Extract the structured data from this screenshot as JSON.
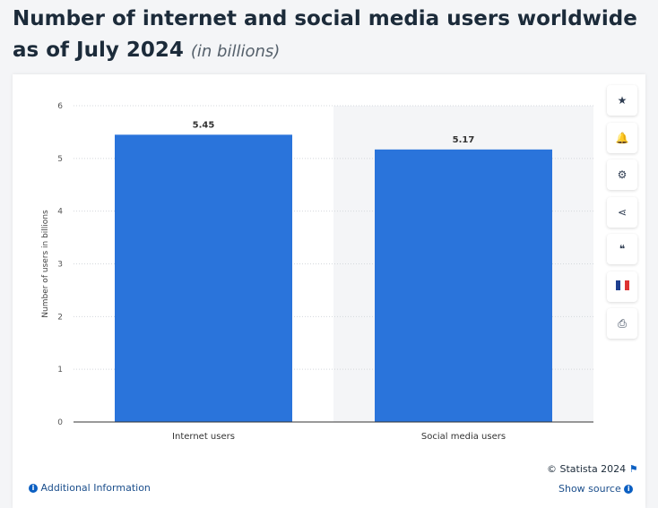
{
  "title": "Number of internet and social media users worldwide as of July 2024",
  "title_unit": "(in billions)",
  "tools": [
    {
      "name": "star-icon",
      "glyph": "★"
    },
    {
      "name": "bell-icon",
      "glyph": "🔔"
    },
    {
      "name": "gear-icon",
      "glyph": "⚙"
    },
    {
      "name": "share-icon",
      "glyph": "⋖"
    },
    {
      "name": "quote-icon",
      "glyph": "❝"
    },
    {
      "name": "french-flag-icon",
      "glyph": ""
    },
    {
      "name": "print-icon",
      "glyph": "⎙"
    }
  ],
  "footer": {
    "copyright": "© Statista 2024",
    "additional": "Additional Information",
    "source": "Show source"
  },
  "colors": {
    "bar": "#2a74db",
    "highlight": "#f4f5f7"
  },
  "chart_data": {
    "type": "bar",
    "title": "Number of internet and social media users worldwide as of July 2024",
    "categories": [
      "Internet users",
      "Social media users"
    ],
    "values": [
      5.45,
      5.17
    ],
    "value_labels": [
      "5.45",
      "5.17"
    ],
    "ylabel": "Number of users in billions",
    "xlabel": "",
    "ylim": [
      0,
      6
    ],
    "yticks": [
      "0",
      "1",
      "2",
      "3",
      "4",
      "5",
      "6"
    ],
    "grid": true,
    "highlighted_category": "Social media users"
  }
}
